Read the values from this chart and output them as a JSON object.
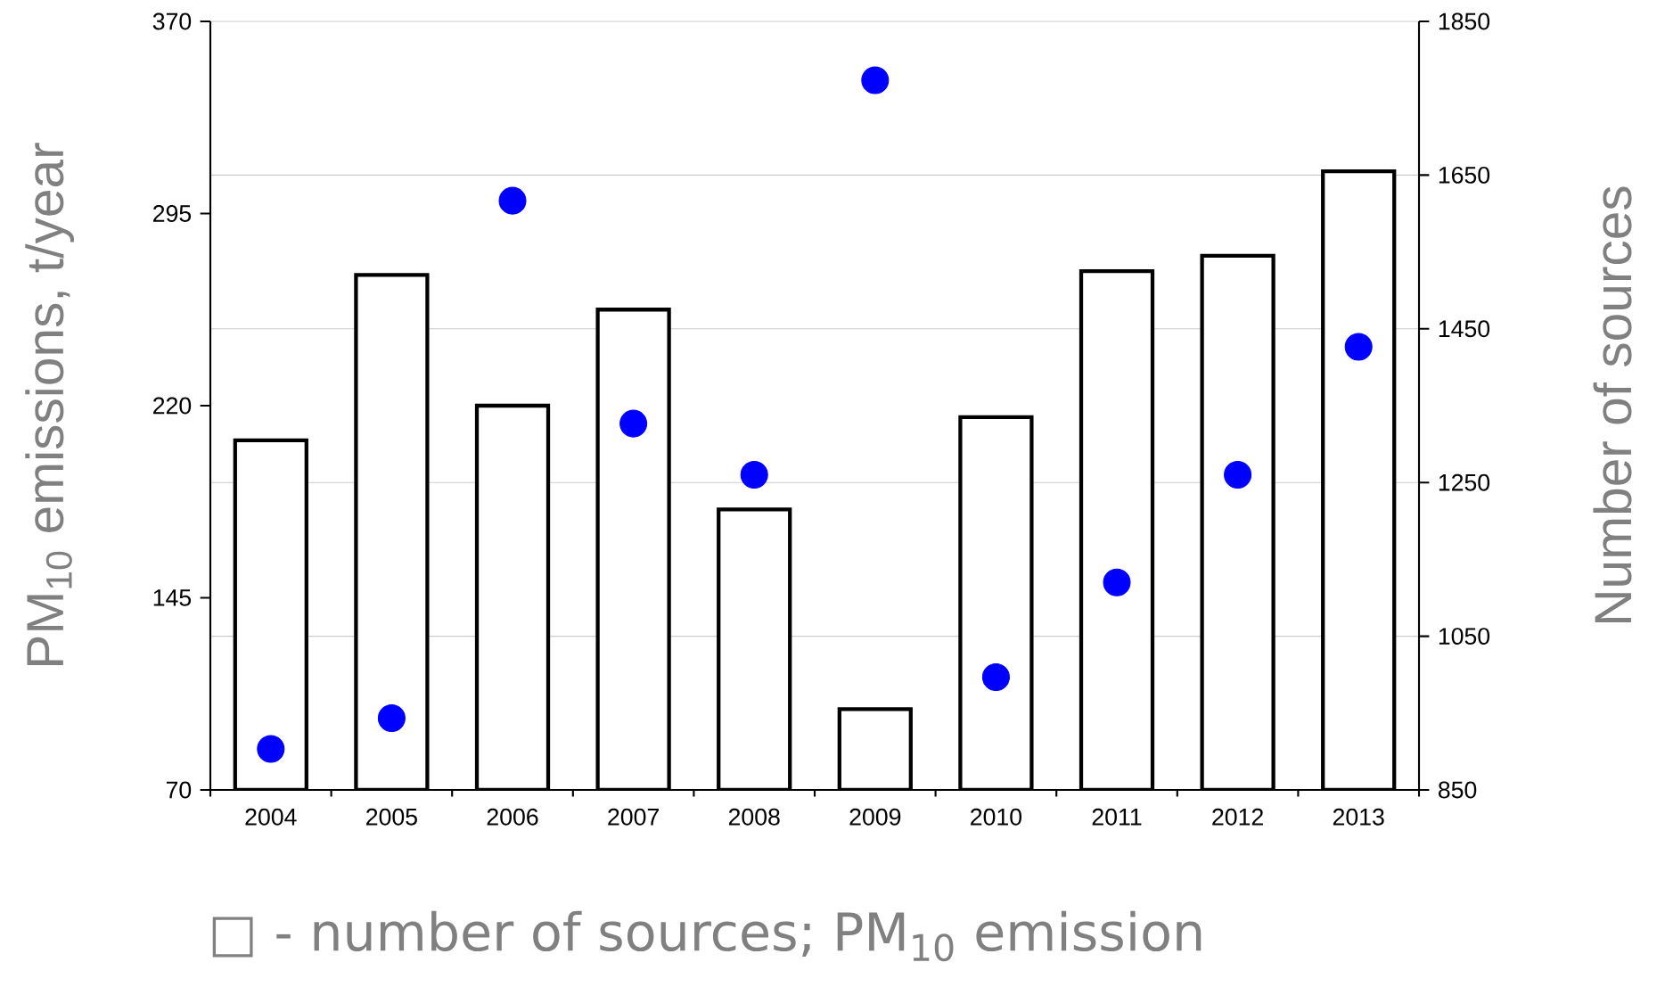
{
  "chart_data": {
    "type": "bar",
    "categories": [
      "2004",
      "2005",
      "2006",
      "2007",
      "2008",
      "2009",
      "2010",
      "2011",
      "2012",
      "2013"
    ],
    "series": [
      {
        "axis": "y2",
        "color": "#ffffff",
        "values": [
          1305,
          1520,
          1350,
          1475,
          1215,
          955,
          1335,
          1525,
          1545,
          1655
        ]
      },
      {
        "type": "scatter",
        "color": "#0000ff",
        "values": [
          86,
          98,
          300,
          213,
          193,
          347,
          114,
          151,
          193,
          243
        ]
      }
    ],
    "ylabel": "PM$_{10}$ emissions, t/year",
    "y2label": "Number of sources",
    "ylim": [
      70,
      370
    ],
    "yticks": [
      70,
      145,
      220,
      295,
      370
    ],
    "y2lim": [
      850,
      1850
    ],
    "y2ticks": [
      850,
      1050,
      1250,
      1450,
      1650,
      1850
    ],
    "grid": "y2",
    "annotations": [
      "□ - number of sources; PM$_{10}$ emission"
    ]
  }
}
